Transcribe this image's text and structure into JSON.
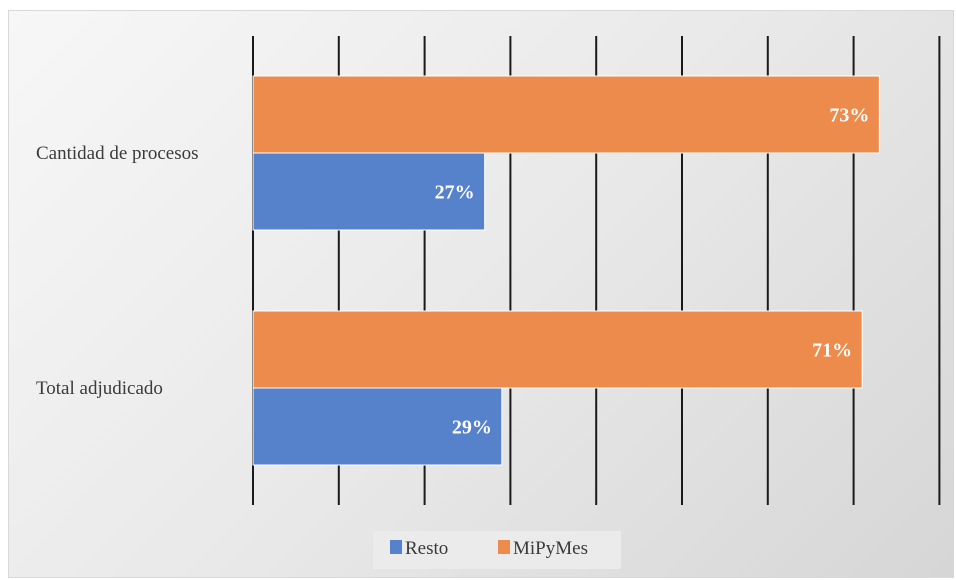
{
  "chart_data": {
    "type": "bar",
    "orientation": "horizontal",
    "categories": [
      "Cantidad de procesos",
      "Total adjudicado"
    ],
    "series": [
      {
        "name": "MiPyMes",
        "values": [
          73,
          71
        ],
        "labels": [
          "73%",
          "71%"
        ],
        "color": "#ED8B4C"
      },
      {
        "name": "Resto",
        "values": [
          27,
          29
        ],
        "labels": [
          "27%",
          "29%"
        ],
        "color": "#5682CC"
      }
    ],
    "legend_order": [
      "Resto",
      "MiPyMes"
    ],
    "xlim": [
      0,
      80
    ],
    "grid": "vertical",
    "legend_position": "bottom",
    "title": "",
    "xlabel": "",
    "ylabel": ""
  }
}
